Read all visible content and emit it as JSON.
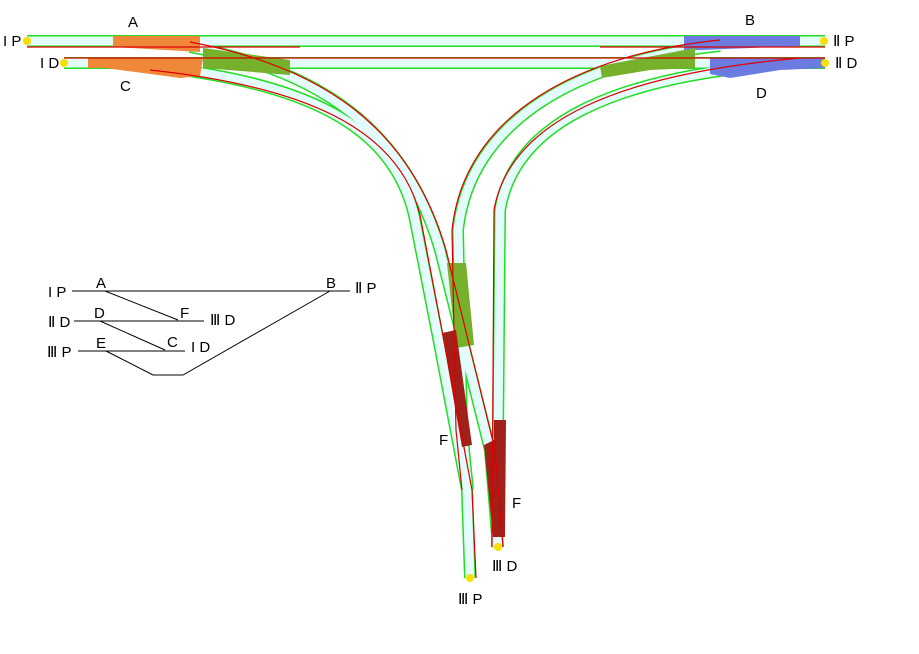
{
  "track_labels": {
    "ip": "I P",
    "id": "I D",
    "iip": "Ⅱ P",
    "iid": "Ⅱ D",
    "iiip": "Ⅲ P",
    "iiid": "Ⅲ D"
  },
  "switch_labels": {
    "a": "A",
    "b": "B",
    "c": "C",
    "d": "D",
    "f1": "F",
    "f2": "F"
  },
  "schematic": {
    "ip": "I P",
    "iid": "Ⅱ D",
    "iiip": "Ⅲ P",
    "iip": "Ⅱ P",
    "iiid": "Ⅲ D",
    "id": "I D",
    "a": "A",
    "b": "B",
    "d": "D",
    "e": "E",
    "f": "F",
    "c": "C"
  },
  "colors": {
    "track_fill": "#e3fbfb",
    "track_edge": "#22dd22",
    "rail": "#dd0000",
    "switch_a_c": "#f0883a",
    "switch_b_d": "#6b7be0",
    "crossing": "#77b02a",
    "switch_f": "#a0201a",
    "endpoint": "#f5e000"
  }
}
